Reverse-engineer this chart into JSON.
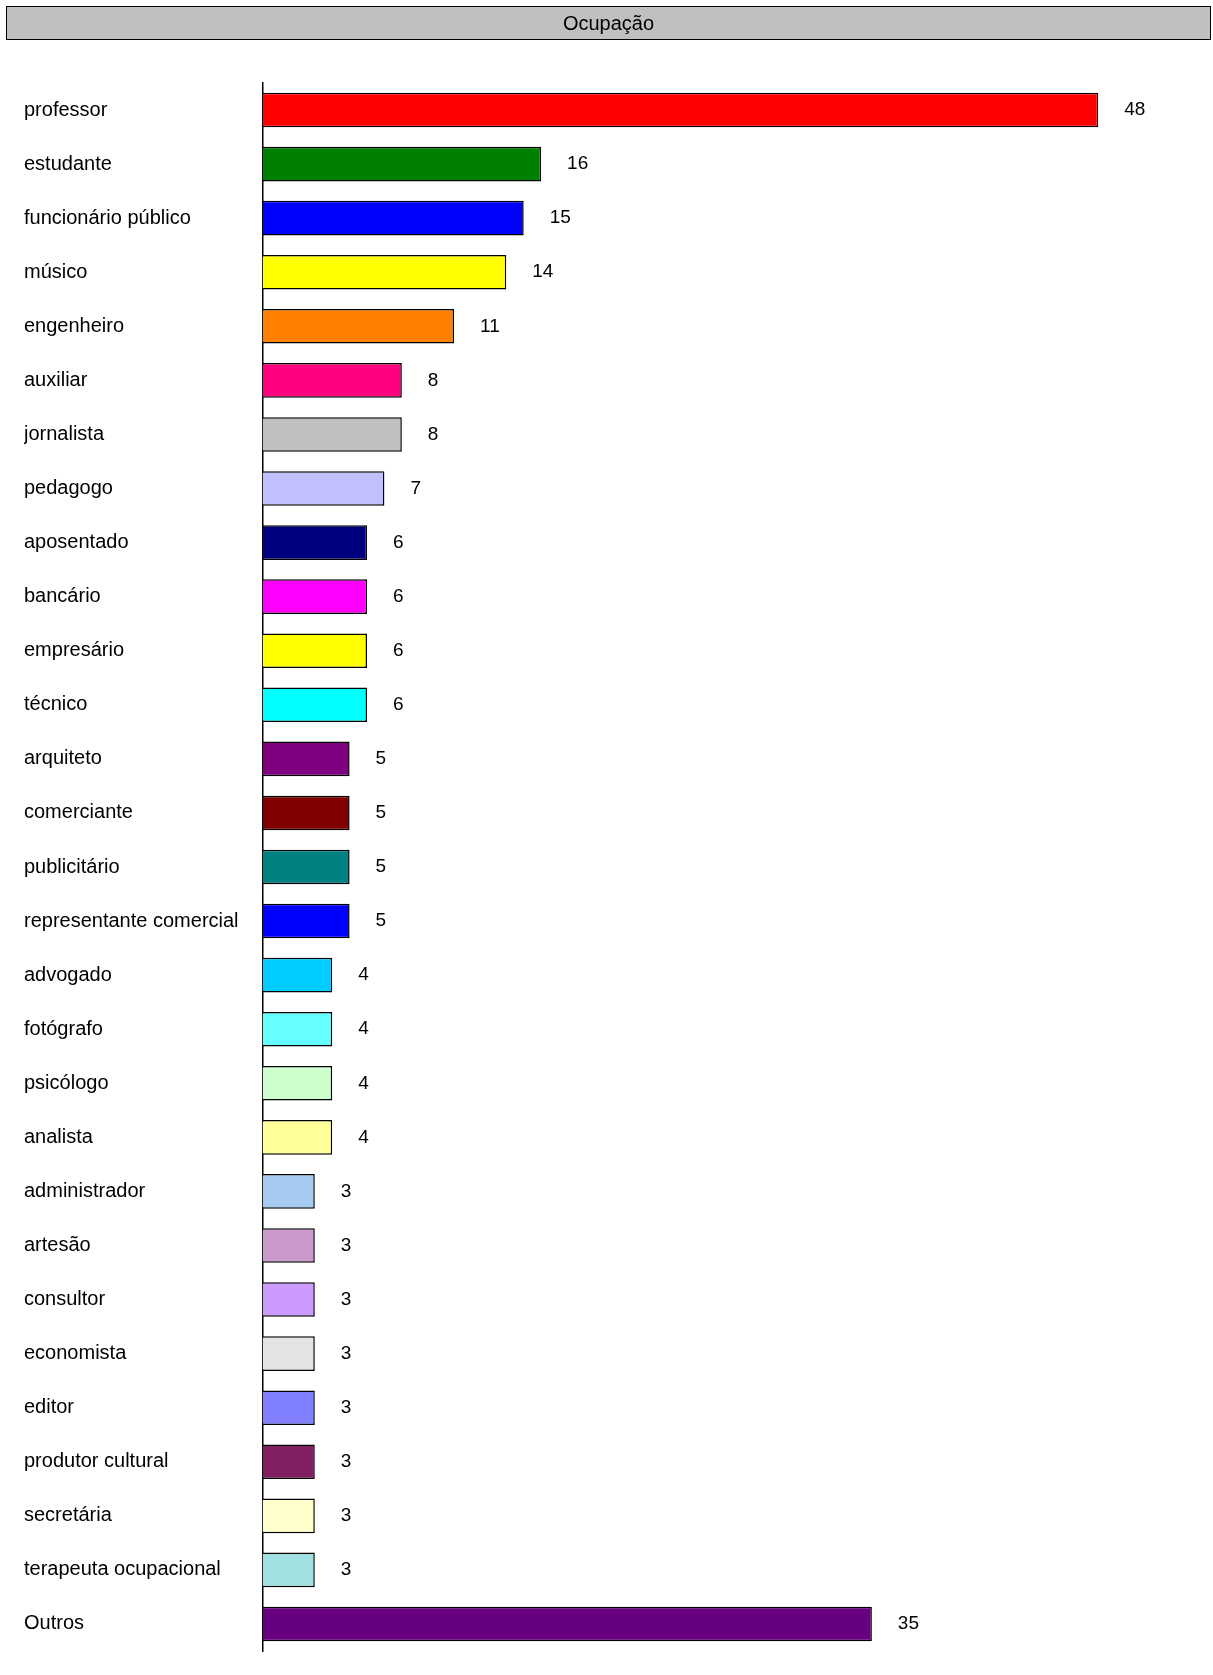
{
  "chart_data": {
    "type": "bar",
    "orientation": "horizontal",
    "title": "Ocupação",
    "categories": [
      "professor",
      "estudante",
      "funcionário público",
      "músico",
      "engenheiro",
      "auxiliar",
      "jornalista",
      "pedagogo",
      "aposentado",
      "bancário",
      "empresário",
      "técnico",
      "arquiteto",
      "comerciante",
      "publicitário",
      "representante comercial",
      "advogado",
      "fotógrafo",
      "psicólogo",
      "analista",
      "administrador",
      "artesão",
      "consultor",
      "economista",
      "editor",
      "produtor cultural",
      "secretária",
      "terapeuta ocupacional",
      "Outros"
    ],
    "values": [
      48,
      16,
      15,
      14,
      11,
      8,
      8,
      7,
      6,
      6,
      6,
      6,
      5,
      5,
      5,
      5,
      4,
      4,
      4,
      4,
      3,
      3,
      3,
      3,
      3,
      3,
      3,
      3,
      35
    ],
    "colors": [
      "#ff0000",
      "#008000",
      "#0000ff",
      "#ffff00",
      "#ff8000",
      "#ff0080",
      "#c0c0c0",
      "#c0c0ff",
      "#000080",
      "#ff00ff",
      "#ffff00",
      "#00ffff",
      "#800080",
      "#800000",
      "#008080",
      "#0000ff",
      "#00ccff",
      "#66ffff",
      "#ccffcc",
      "#ffff99",
      "#a6caf0",
      "#cc99cc",
      "#cc99ff",
      "#e3e3e3",
      "#8080ff",
      "#802060",
      "#ffffcc",
      "#a0e0e0",
      "#660080"
    ],
    "data_labels": true,
    "grid": false,
    "legend": false
  }
}
